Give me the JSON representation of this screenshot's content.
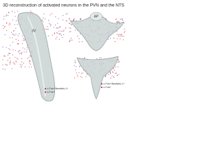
{
  "header": {
    "title": "3D reconstruction of activated neurons in the PVN and the NTS"
  },
  "panels": [
    {
      "label": "3V",
      "legend": [
        "c-Fos+/Nesfatin-1+",
        "c-Fos+"
      ]
    },
    {
      "label": "AP"
    },
    {
      "legend": [
        "c-Fos+/Nesfatin-1+",
        "c-Fos+"
      ]
    }
  ]
}
